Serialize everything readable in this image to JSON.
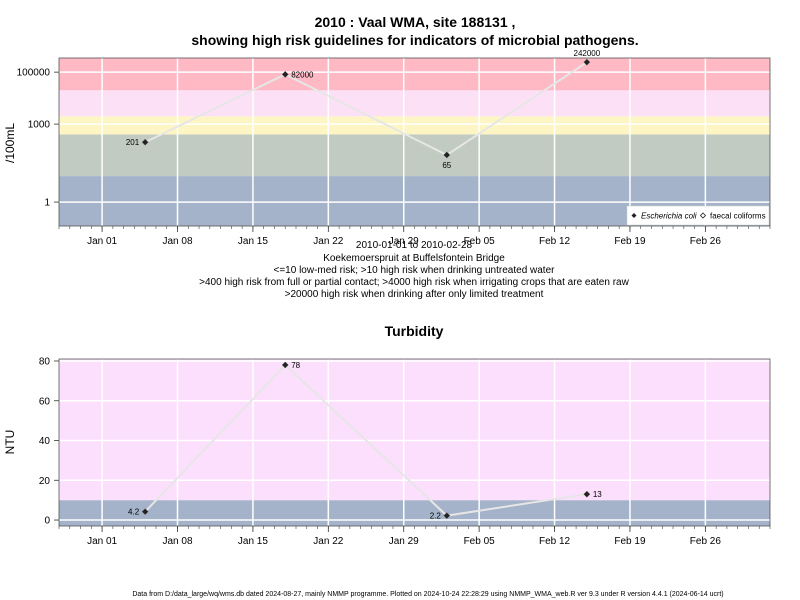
{
  "chart_data": [
    {
      "type": "scatter",
      "title_line1": "2010 : Vaal WMA, site 188131 ,",
      "title_line2": "showing high risk guidelines for indicators of microbial pathogens.",
      "ylabel": "/100mL",
      "y_scale": "log10",
      "ylim": [
        0.12,
        350000
      ],
      "xlim": [
        "2009-12-28",
        "2010-03-04"
      ],
      "x_ticks": [
        "2010-01-01",
        "2010-01-08",
        "2010-01-15",
        "2010-01-22",
        "2010-01-29",
        "2010-02-05",
        "2010-02-12",
        "2010-02-19",
        "2010-02-26"
      ],
      "x_tick_labels": [
        "Jan 01",
        "Jan 08",
        "Jan 15",
        "Jan 22",
        "Jan 29",
        "Feb 05",
        "Feb 12",
        "Feb 19",
        "Feb 26"
      ],
      "y_ticks": [
        1,
        1000,
        100000
      ],
      "y_tick_labels": [
        "1",
        "1000",
        "100000"
      ],
      "bands": [
        {
          "from": 0.12,
          "to": 10,
          "color": "#a4b3c9"
        },
        {
          "from": 10,
          "to": 400,
          "color": "#c1cbc2"
        },
        {
          "from": 400,
          "to": 2000,
          "color": "#fdf6c4"
        },
        {
          "from": 2000,
          "to": 20000,
          "color": "#fce0f6"
        },
        {
          "from": 20000,
          "to": 350000,
          "color": "#ffb9c4"
        }
      ],
      "series": [
        {
          "name": "Escherichia coli",
          "marker": "filled-diamond",
          "x": [
            "2010-01-05",
            "2010-01-18",
            "2010-02-02",
            "2010-02-15"
          ],
          "y": [
            201,
            82000,
            65,
            242000
          ],
          "labels": [
            "201",
            "82000",
            "65",
            "242000"
          ]
        },
        {
          "name": "faecal coliforms",
          "marker": "open-diamond",
          "x": [],
          "y": []
        }
      ],
      "legend_position": "bottom-right",
      "grid": true,
      "subtitle_lines": [
        "2010-01-01 to 2010-02-28",
        "Koekemoerspruit at Buffelsfontein Bridge",
        "<=10 low-med risk; >10 high risk when drinking untreated water",
        ">400 high risk from full or partial contact; >4000 high risk when irrigating crops that are eaten raw",
        ">20000 high risk when drinking after only limited treatment"
      ]
    },
    {
      "type": "scatter",
      "title": "Turbidity",
      "ylabel": "NTU",
      "y_scale": "linear",
      "ylim": [
        -3,
        81
      ],
      "xlim": [
        "2009-12-28",
        "2010-03-04"
      ],
      "x_ticks": [
        "2010-01-01",
        "2010-01-08",
        "2010-01-15",
        "2010-01-22",
        "2010-01-29",
        "2010-02-05",
        "2010-02-12",
        "2010-02-19",
        "2010-02-26"
      ],
      "x_tick_labels": [
        "Jan 01",
        "Jan 08",
        "Jan 15",
        "Jan 22",
        "Jan 29",
        "Feb 05",
        "Feb 12",
        "Feb 19",
        "Feb 26"
      ],
      "y_ticks": [
        0,
        20,
        40,
        60,
        80
      ],
      "y_tick_labels": [
        "0",
        "20",
        "40",
        "60",
        "80"
      ],
      "bands": [
        {
          "from": -3,
          "to": 10,
          "color": "#a4b3c9"
        },
        {
          "from": 10,
          "to": 81,
          "color": "#fcdffc"
        }
      ],
      "series": [
        {
          "name": "Turbidity",
          "marker": "filled-diamond",
          "x": [
            "2010-01-05",
            "2010-01-18",
            "2010-02-02",
            "2010-02-15"
          ],
          "y": [
            4.2,
            78,
            2.2,
            13
          ],
          "labels": [
            "4.2",
            "78",
            "2.2",
            "13"
          ]
        }
      ],
      "grid": true
    }
  ],
  "footer": "Data from D:/data_large/wq/wms.db dated 2024-08-27, mainly NMMP programme. Plotted on 2024-10-24 22:28:29 using NMMP_WMA_web.R ver 9.3 under R version 4.4.1 (2024-06-14 ucrt)"
}
